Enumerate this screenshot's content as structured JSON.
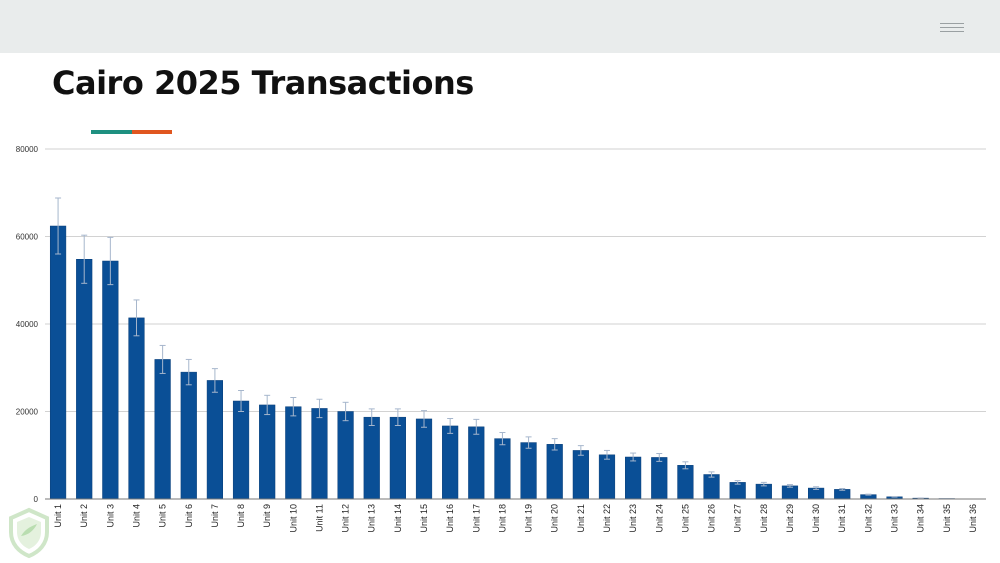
{
  "header": {
    "menu_icon": "hamburger-menu-icon"
  },
  "page": {
    "title": "Cairo 2025 Transactions"
  },
  "accent_colors": [
    "#1e9080",
    "#e0561f"
  ],
  "colors": {
    "bar": "#0a4f96",
    "bar_outline": "#083e78",
    "error_bar": "#a6b6cc",
    "gridline": "#d2d2d2"
  },
  "logo_icon": "shield-logo-icon",
  "chart_data": {
    "type": "bar",
    "title": "",
    "xlabel": "",
    "ylabel": "",
    "ylim": [
      0,
      80000
    ],
    "yticks": [
      0,
      20000,
      40000,
      60000,
      80000
    ],
    "grid": true,
    "legend": "none",
    "categories": [
      "Unit 1",
      "Unit 2",
      "Unit 3",
      "Unit 4",
      "Unit 5",
      "Unit 6",
      "Unit 7",
      "Unit 8",
      "Unit 9",
      "Unit 10",
      "Unit 11",
      "Unit 12",
      "Unit 13",
      "Unit 14",
      "Unit 15",
      "Unit 16",
      "Unit 17",
      "Unit 18",
      "Unit 19",
      "Unit 20",
      "Unit 21",
      "Unit 22",
      "Unit 23",
      "Unit 24",
      "Unit 25",
      "Unit 26",
      "Unit 27",
      "Unit 28",
      "Unit 29",
      "Unit 30",
      "Unit 31",
      "Unit 32",
      "Unit 33",
      "Unit 34",
      "Unit 35",
      "Unit 36"
    ],
    "values": [
      62400,
      54800,
      54400,
      41400,
      31900,
      29000,
      27100,
      22400,
      21500,
      21100,
      20700,
      20000,
      18700,
      18700,
      18300,
      16700,
      16500,
      13800,
      12900,
      12500,
      11100,
      10100,
      9600,
      9500,
      7700,
      5600,
      3800,
      3400,
      3000,
      2500,
      2200,
      1000,
      500,
      200,
      100,
      0
    ],
    "error": [
      6400,
      5500,
      5400,
      4100,
      3200,
      2900,
      2700,
      2400,
      2200,
      2100,
      2100,
      2100,
      1900,
      1900,
      1900,
      1700,
      1700,
      1400,
      1300,
      1300,
      1100,
      1000,
      900,
      900,
      800,
      600,
      400,
      400,
      300,
      300,
      200,
      100,
      50,
      20,
      0,
      0
    ]
  }
}
